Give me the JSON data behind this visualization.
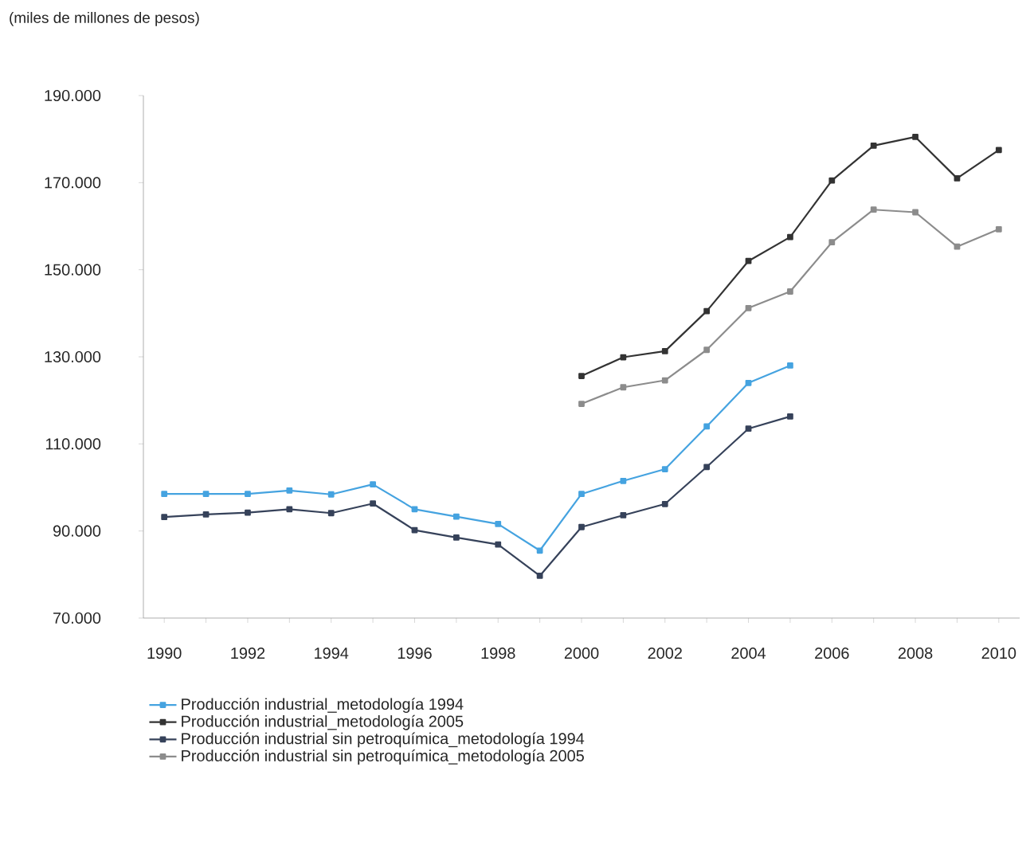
{
  "chart_data": {
    "type": "line",
    "ylabel": "(miles de millones de pesos)",
    "x": [
      1990,
      1991,
      1992,
      1993,
      1994,
      1995,
      1996,
      1997,
      1998,
      1999,
      2000,
      2001,
      2002,
      2003,
      2004,
      2005,
      2006,
      2007,
      2008,
      2009,
      2010
    ],
    "series": [
      {
        "name": "Producción industrial_metodología 1994",
        "color": "#45a3e0",
        "values": [
          98500,
          98500,
          98500,
          99300,
          98400,
          100700,
          95000,
          93300,
          91600,
          85500,
          98500,
          101500,
          104200,
          114000,
          124000,
          128000,
          null,
          null,
          null,
          null,
          null
        ]
      },
      {
        "name": "Producción industrial_metodología 2005",
        "color": "#333333",
        "values": [
          null,
          null,
          null,
          null,
          null,
          null,
          null,
          null,
          null,
          null,
          125600,
          129900,
          131300,
          140500,
          152000,
          157500,
          170500,
          178500,
          180500,
          171000,
          177500
        ]
      },
      {
        "name": "Producción industrial sin petroquímica_metodología 1994",
        "color": "#36425a",
        "values": [
          93200,
          93800,
          94200,
          95000,
          94100,
          96300,
          90200,
          88500,
          86900,
          79700,
          90900,
          93600,
          96200,
          104700,
          113500,
          116300,
          null,
          null,
          null,
          null,
          null
        ]
      },
      {
        "name": "Producción industrial sin petroquímica_metodología 2005",
        "color": "#8c8c8c",
        "values": [
          null,
          null,
          null,
          null,
          null,
          null,
          null,
          null,
          null,
          null,
          119200,
          123000,
          124600,
          131600,
          141200,
          145000,
          156300,
          163800,
          163200,
          155300,
          159300
        ]
      }
    ],
    "xlim": [
      1989.5,
      2010.5
    ],
    "xticks": [
      1990,
      {
        "value": 1991,
        "label": null
      },
      1992,
      {
        "value": 1993,
        "label": null
      },
      1994,
      {
        "value": 1995,
        "label": null
      },
      1996,
      {
        "value": 1997,
        "label": null
      },
      1998,
      {
        "value": 1999,
        "label": null
      },
      2000,
      {
        "value": 2001,
        "label": null
      },
      2002,
      {
        "value": 2003,
        "label": null
      },
      2004,
      {
        "value": 2005,
        "label": null
      },
      2006,
      {
        "value": 2007,
        "label": null
      },
      2008,
      {
        "value": 2009,
        "label": null
      },
      2010
    ],
    "ylim": [
      70000,
      190000
    ],
    "yticks": [
      {
        "value": 70000,
        "label": "70.000"
      },
      {
        "value": 90000,
        "label": "90.000"
      },
      {
        "value": 110000,
        "label": "110.000"
      },
      {
        "value": 130000,
        "label": "130.000"
      },
      {
        "value": 150000,
        "label": "150.000"
      },
      {
        "value": 170000,
        "label": "170.000"
      },
      {
        "value": 190000,
        "label": "190.000"
      }
    ],
    "grid": false,
    "legend": "bottom",
    "marker": "square",
    "line_style": "solid"
  }
}
